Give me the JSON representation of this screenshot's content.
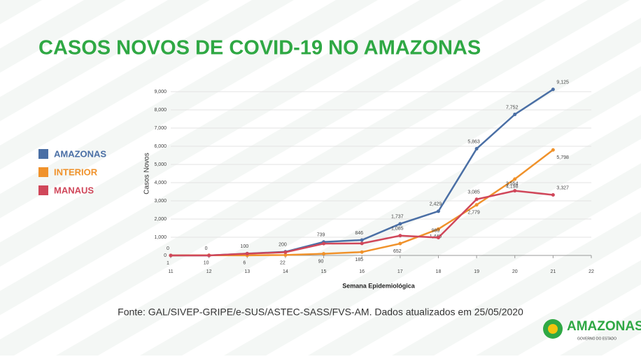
{
  "chart_data": {
    "type": "line",
    "title": "CASOS NOVOS DE COVID-19 NO AMAZONAS",
    "x": [
      11,
      12,
      13,
      14,
      15,
      16,
      17,
      18,
      19,
      20,
      21
    ],
    "series": [
      {
        "name": "AMAZONAS",
        "color": "#4a6fa5",
        "values": [
          0,
          0,
          100,
          200,
          739,
          846,
          1737,
          2429,
          5863,
          7752,
          9125
        ],
        "value_labels": [
          "0",
          "0",
          "100",
          "200",
          "739",
          "846",
          "1,737",
          "2,429",
          "5,863",
          "7,752",
          "9,125"
        ]
      },
      {
        "name": "INTERIOR",
        "color": "#f0922b",
        "values": [
          1,
          10,
          6,
          22,
          90,
          185,
          652,
          1449,
          2779,
          4198,
          5798
        ],
        "value_labels": [
          "1",
          "10",
          "6",
          "22",
          "90",
          "185",
          "652",
          "1,449",
          "2,779",
          "4,198",
          "5,798"
        ]
      },
      {
        "name": "MANAUS",
        "color": "#d0475a",
        "values": [
          0,
          0,
          94,
          178,
          649,
          661,
          1085,
          980,
          3085,
          3554,
          3327
        ],
        "value_labels": [
          null,
          null,
          null,
          null,
          null,
          null,
          "1,085",
          "980",
          "3,085",
          "3,554",
          "3,327"
        ]
      }
    ],
    "xlim": [
      11,
      22
    ],
    "xticks": [
      11,
      12,
      13,
      14,
      15,
      16,
      17,
      18,
      19,
      20,
      21,
      22
    ],
    "ylim": [
      0,
      9500
    ],
    "yticks": [
      0,
      {
        "value": 1000,
        "label": "1,000"
      },
      {
        "value": 2000,
        "label": "2,000"
      },
      {
        "value": 3000,
        "label": "3,000"
      },
      {
        "value": 4000,
        "label": "4,000"
      },
      {
        "value": 5000,
        "label": "5,000"
      },
      {
        "value": 6000,
        "label": "6,000"
      },
      {
        "value": 7000,
        "label": "7,000"
      },
      {
        "value": 8000,
        "label": "8,000"
      },
      {
        "value": 9000,
        "label": "9,000"
      }
    ],
    "grid": true,
    "xlabel": "Semana Epidemiológica",
    "ylabel": "Casos Novos",
    "source": "Fonte: GAL/SIVEP-GRIPE/e-SUS/ASTEC-SASS/FVS-AM. Dados atualizados em 25/05/2020"
  },
  "logo": {
    "title": "AMAZONAS",
    "subtitle": "GOVERNO DO ESTADO"
  }
}
